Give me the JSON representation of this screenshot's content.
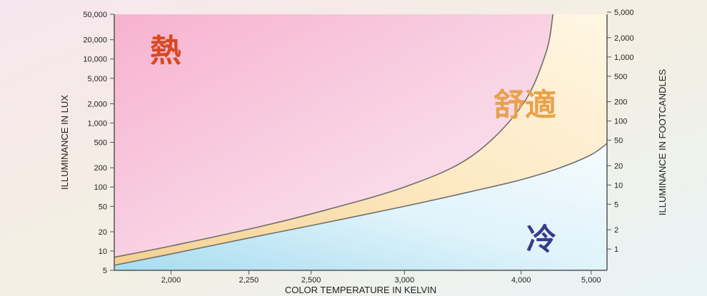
{
  "chart_data": {
    "type": "area",
    "title": "",
    "xlabel": "COLOR TEMPERATURE IN KELVIN",
    "ylabel_left": "ILLUMINANCE IN LUX",
    "ylabel_right": "ILLUMINANCE IN FOOTCANDLES",
    "x_ticks": [
      "2,000",
      "2,250",
      "2,500",
      "3,000",
      "4,000",
      "5,000"
    ],
    "x_tick_values": [
      2000,
      2250,
      2500,
      3000,
      4000,
      5000
    ],
    "xlim": [
      1850,
      5300
    ],
    "y_left_ticks": [
      "50,000",
      "20,000",
      "10,000",
      "5,000",
      "2,000",
      "1,000",
      "500",
      "200",
      "100",
      "50",
      "20",
      "10",
      "5"
    ],
    "y_left_values": [
      50000,
      20000,
      10000,
      5000,
      2000,
      1000,
      500,
      200,
      100,
      50,
      20,
      10,
      5
    ],
    "y_right_ticks": [
      "5,000",
      "2,000",
      "1,000",
      "500",
      "200",
      "100",
      "50",
      "20",
      "10",
      "5",
      "2",
      "1"
    ],
    "y_right_values": [
      5000,
      2000,
      1000,
      500,
      200,
      100,
      50,
      20,
      10,
      5,
      2,
      1
    ],
    "ylim": [
      5,
      50000
    ],
    "y_scale": "log",
    "x_scale": "reciprocal",
    "series": [
      {
        "x": [
          1850,
          2000,
          2250,
          2500,
          3000,
          3500,
          4000,
          4300,
          4400
        ],
        "y": [
          8,
          12,
          22,
          38,
          100,
          300,
          1800,
          12000,
          50000
        ]
      },
      {
        "x": [
          1850,
          2000,
          2250,
          2500,
          3000,
          3500,
          4000,
          4500,
          5000,
          5300
        ],
        "y": [
          6,
          9,
          16,
          25,
          50,
          85,
          130,
          200,
          320,
          480
        ]
      }
    ],
    "zones": [
      {
        "label": "熱",
        "color": "#f7a9c8",
        "text_color": "#d9481e"
      },
      {
        "label": "舒適",
        "color": "#fbe3b2",
        "text_color": "#e8a24c"
      },
      {
        "label": "冷",
        "color": "#b7e4f4",
        "text_color": "#3a3a8c"
      }
    ]
  }
}
